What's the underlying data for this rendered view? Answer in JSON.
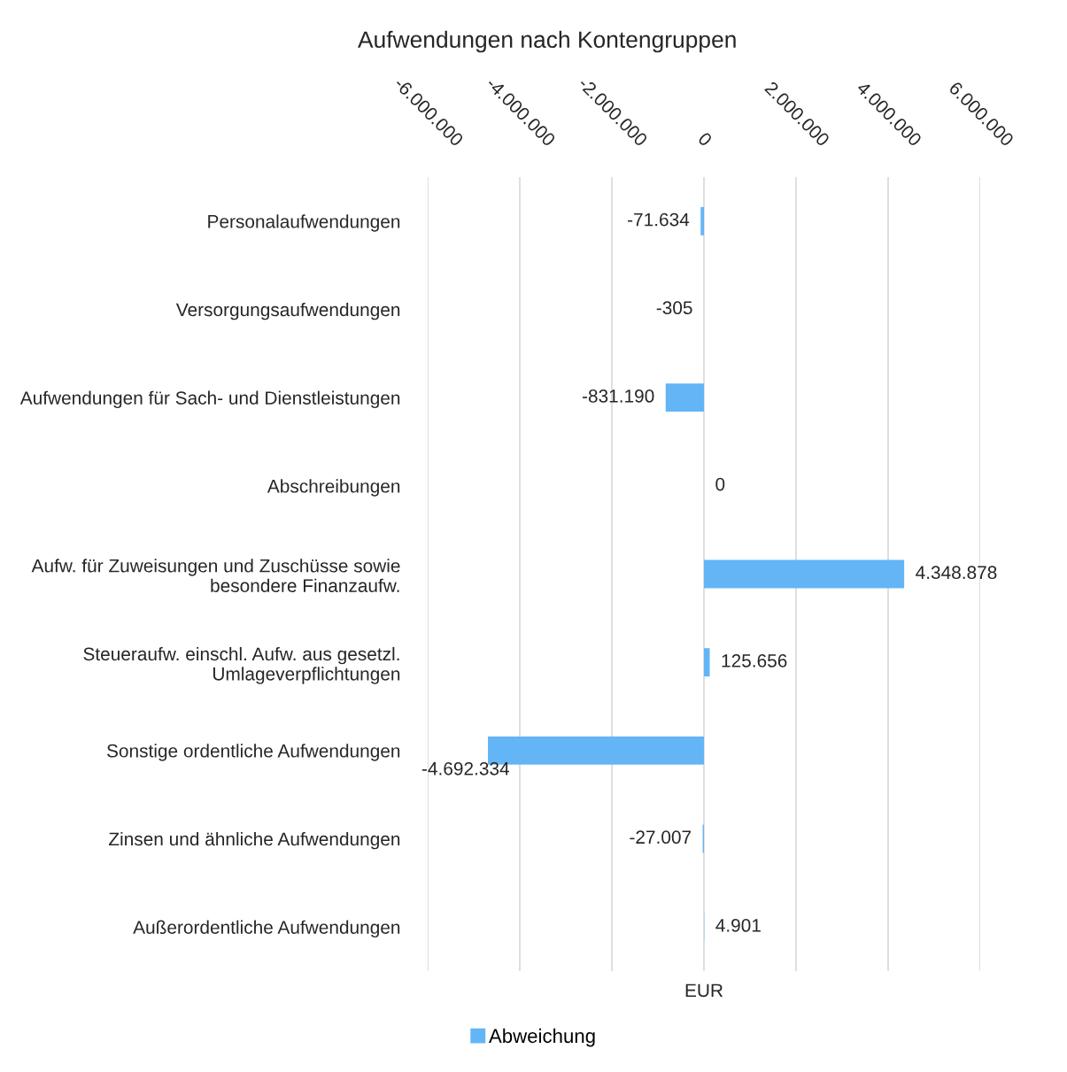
{
  "chart_data": {
    "type": "bar",
    "orientation": "horizontal",
    "title": "Aufwendungen nach Kontengruppen",
    "xlabel": "EUR",
    "categories": [
      "Personalaufwendungen",
      "Versorgungsaufwendungen",
      "Aufwendungen für Sach- und Dienstleistungen",
      "Abschreibungen",
      "Aufw. für Zuweisungen und Zuschüsse sowie\nbesondere Finanzaufw.",
      "Steueraufw. einschl. Aufw. aus gesetzl.\nUmlageverpflichtungen",
      "Sonstige ordentliche Aufwendungen",
      "Zinsen und ähnliche Aufwendungen",
      "Außerordentliche Aufwendungen"
    ],
    "series": [
      {
        "name": "Abweichung",
        "color": "#64b5f6",
        "values": [
          -71634,
          -305,
          -831190,
          0,
          4348878,
          125656,
          -4692334,
          -27007,
          4901
        ],
        "value_labels": [
          "-71.634",
          "-305",
          "-831.190",
          "0",
          "4.348.878",
          "125.656",
          "-4.692.334",
          "-27.007",
          "4.901"
        ]
      }
    ],
    "xlim": [
      -6000000,
      6000000
    ],
    "xticks": [
      {
        "value": -6000000,
        "label": "-6.000.000"
      },
      {
        "value": -4000000,
        "label": "-4.000.000"
      },
      {
        "value": -2000000,
        "label": "-2.000.000"
      },
      0,
      {
        "value": 2000000,
        "label": "2.000.000"
      },
      {
        "value": 4000000,
        "label": "4.000.000"
      },
      {
        "value": 6000000,
        "label": "6.000.000"
      }
    ],
    "grid": "x",
    "legend": "bottom"
  }
}
